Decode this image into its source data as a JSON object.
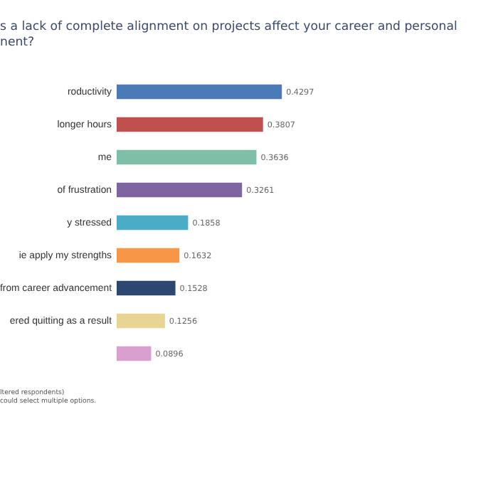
{
  "chart_data": {
    "type": "bar",
    "orientation": "horizontal",
    "title": "s a lack of complete alignment on projects affect your career and personal\nnent?",
    "categories": [
      "roductivity",
      "longer hours",
      "me",
      "of frustration",
      "y stressed",
      "ie apply my strengths",
      "from career advancement",
      "ered quitting as a result",
      null
    ],
    "values": [
      0.4297,
      0.3807,
      0.3636,
      0.3261,
      0.1858,
      0.1632,
      0.1528,
      0.1256,
      0.0896
    ],
    "colors": [
      "#4a7ab8",
      "#c0504d",
      "#7fbfa8",
      "#8064a2",
      "#4aacc6",
      "#f79646",
      "#2c4770",
      "#e8d594",
      "#d9a0cf"
    ],
    "data_labels": true,
    "annotations": [
      "ltered respondents)",
      "could select multiple options."
    ]
  }
}
